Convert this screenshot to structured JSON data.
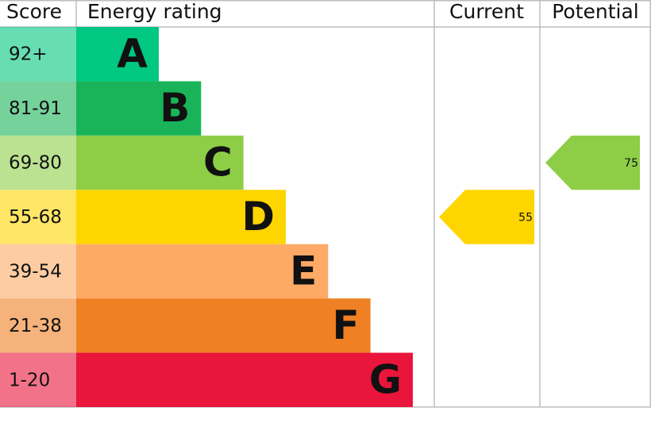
{
  "header": {
    "score": "Score",
    "rating": "Energy rating",
    "current": "Current",
    "potential": "Potential"
  },
  "bands": [
    {
      "score": "92+",
      "letter": "A",
      "color": "#00c781"
    },
    {
      "score": "81-91",
      "letter": "B",
      "color": "#19b459"
    },
    {
      "score": "69-80",
      "letter": "C",
      "color": "#8dce46"
    },
    {
      "score": "55-68",
      "letter": "D",
      "color": "#ffd500"
    },
    {
      "score": "39-54",
      "letter": "E",
      "color": "#fcaa65"
    },
    {
      "score": "21-38",
      "letter": "F",
      "color": "#ef8023"
    },
    {
      "score": "1-20",
      "letter": "G",
      "color": "#e9153b"
    }
  ],
  "current": {
    "value": 55
  },
  "potential": {
    "value": 75
  }
}
